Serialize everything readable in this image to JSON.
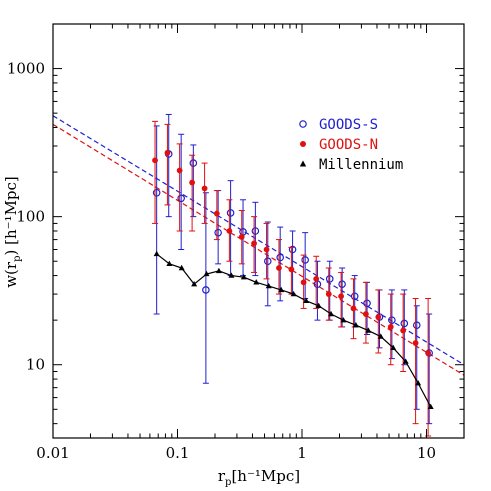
{
  "chart_data": {
    "type": "scatter",
    "x_scale": "log",
    "y_scale": "log",
    "xlim": [
      0.01,
      20
    ],
    "ylim": [
      3.2,
      2000
    ],
    "xlabel_main": "r",
    "xlabel_sub": "p",
    "xlabel_rest": "[h⁻¹Mpc]",
    "ylabel_main": "w(r",
    "ylabel_sub": "p",
    "ylabel_rest": ") [h⁻¹Mpc]",
    "x_ticks": [
      {
        "value": 0.01,
        "label": "0.01"
      },
      {
        "value": 0.1,
        "label": "0.1"
      },
      {
        "value": 1,
        "label": "1"
      },
      {
        "value": 10,
        "label": "10"
      }
    ],
    "y_ticks": [
      {
        "value": 10,
        "label": "10"
      },
      {
        "value": 100,
        "label": "100"
      },
      {
        "value": 1000,
        "label": "1000"
      }
    ],
    "legend": [
      {
        "label": "GOODS-S",
        "marker": "open-circle",
        "color": "#1f1fd0"
      },
      {
        "label": "GOODS-N",
        "marker": "filled-circle",
        "color": "#e01010"
      },
      {
        "label": "Millennium",
        "marker": "filled-triangle",
        "color": "#000000"
      }
    ],
    "series": [
      {
        "name": "GOODS-S",
        "color": "#1f1fd0",
        "marker": "open-circle",
        "points": [
          {
            "x": 0.068,
            "y": 145,
            "lo": 22,
            "hi": 410
          },
          {
            "x": 0.085,
            "y": 265,
            "lo": 100,
            "hi": 490
          },
          {
            "x": 0.107,
            "y": 133,
            "lo": 60,
            "hi": 360
          },
          {
            "x": 0.134,
            "y": 230,
            "lo": 100,
            "hi": 305
          },
          {
            "x": 0.169,
            "y": 32,
            "lo": 7.5,
            "hi": 145
          },
          {
            "x": 0.212,
            "y": 78,
            "lo": 48,
            "hi": 150
          },
          {
            "x": 0.267,
            "y": 106,
            "lo": 40,
            "hi": 175
          },
          {
            "x": 0.336,
            "y": 79,
            "lo": 40,
            "hi": 130
          },
          {
            "x": 0.422,
            "y": 80,
            "lo": 40,
            "hi": 125
          },
          {
            "x": 0.531,
            "y": 50,
            "lo": 25,
            "hi": 92
          },
          {
            "x": 0.668,
            "y": 53,
            "lo": 27,
            "hi": 85
          },
          {
            "x": 0.84,
            "y": 60,
            "lo": 30,
            "hi": 80
          },
          {
            "x": 1.06,
            "y": 51,
            "lo": 28,
            "hi": 78
          },
          {
            "x": 1.33,
            "y": 35,
            "lo": 20,
            "hi": 50
          },
          {
            "x": 1.67,
            "y": 38,
            "lo": 20,
            "hi": 50
          },
          {
            "x": 2.1,
            "y": 35,
            "lo": 18,
            "hi": 45
          },
          {
            "x": 2.65,
            "y": 29,
            "lo": 18,
            "hi": 40
          },
          {
            "x": 3.33,
            "y": 26,
            "lo": 16,
            "hi": 36
          },
          {
            "x": 4.19,
            "y": 21,
            "lo": 13,
            "hi": 32
          },
          {
            "x": 5.27,
            "y": 20,
            "lo": 11,
            "hi": 32
          },
          {
            "x": 6.63,
            "y": 19,
            "lo": 10,
            "hi": 32
          },
          {
            "x": 8.35,
            "y": 18.5,
            "lo": 5,
            "hi": 25
          },
          {
            "x": 10.5,
            "y": 12,
            "lo": 4,
            "hi": 22
          }
        ]
      },
      {
        "name": "GOODS-N",
        "color": "#e01010",
        "marker": "filled-circle",
        "points": [
          {
            "x": 0.066,
            "y": 240,
            "lo": 90,
            "hi": 440
          },
          {
            "x": 0.083,
            "y": 270,
            "lo": 120,
            "hi": 420
          },
          {
            "x": 0.104,
            "y": 205,
            "lo": 80,
            "hi": 310
          },
          {
            "x": 0.131,
            "y": 170,
            "lo": 80,
            "hi": 260
          },
          {
            "x": 0.165,
            "y": 155,
            "lo": 90,
            "hi": 230
          },
          {
            "x": 0.207,
            "y": 105,
            "lo": 70,
            "hi": 150
          },
          {
            "x": 0.261,
            "y": 80,
            "lo": 50,
            "hi": 130
          },
          {
            "x": 0.328,
            "y": 73,
            "lo": 48,
            "hi": 110
          },
          {
            "x": 0.412,
            "y": 66,
            "lo": 42,
            "hi": 100
          },
          {
            "x": 0.519,
            "y": 60,
            "lo": 38,
            "hi": 90
          },
          {
            "x": 0.653,
            "y": 45,
            "lo": 30,
            "hi": 70
          },
          {
            "x": 0.822,
            "y": 44,
            "lo": 30,
            "hi": 62
          },
          {
            "x": 1.03,
            "y": 36,
            "lo": 24,
            "hi": 55
          },
          {
            "x": 1.3,
            "y": 38,
            "lo": 24,
            "hi": 54
          },
          {
            "x": 1.64,
            "y": 30,
            "lo": 20,
            "hi": 45
          },
          {
            "x": 2.06,
            "y": 29,
            "lo": 18,
            "hi": 42
          },
          {
            "x": 2.59,
            "y": 24,
            "lo": 15,
            "hi": 38
          },
          {
            "x": 3.26,
            "y": 22,
            "lo": 14,
            "hi": 36
          },
          {
            "x": 4.1,
            "y": 21,
            "lo": 12,
            "hi": 32
          },
          {
            "x": 5.16,
            "y": 18,
            "lo": 10,
            "hi": 30
          },
          {
            "x": 6.49,
            "y": 17,
            "lo": 9,
            "hi": 30
          },
          {
            "x": 8.17,
            "y": 14,
            "lo": 4,
            "hi": 28
          },
          {
            "x": 10.3,
            "y": 12,
            "lo": 3.3,
            "hi": 28
          }
        ]
      },
      {
        "name": "Millennium",
        "color": "#000000",
        "marker": "filled-triangle",
        "connected": true,
        "points": [
          {
            "x": 0.068,
            "y": 56
          },
          {
            "x": 0.086,
            "y": 48
          },
          {
            "x": 0.108,
            "y": 45
          },
          {
            "x": 0.136,
            "y": 35
          },
          {
            "x": 0.171,
            "y": 41
          },
          {
            "x": 0.215,
            "y": 43
          },
          {
            "x": 0.271,
            "y": 40
          },
          {
            "x": 0.341,
            "y": 39
          },
          {
            "x": 0.429,
            "y": 36
          },
          {
            "x": 0.54,
            "y": 34
          },
          {
            "x": 0.68,
            "y": 32
          },
          {
            "x": 0.856,
            "y": 30
          },
          {
            "x": 1.08,
            "y": 27
          },
          {
            "x": 1.36,
            "y": 25
          },
          {
            "x": 1.71,
            "y": 22
          },
          {
            "x": 2.15,
            "y": 20
          },
          {
            "x": 2.71,
            "y": 18.5
          },
          {
            "x": 3.41,
            "y": 17
          },
          {
            "x": 4.29,
            "y": 15.5
          },
          {
            "x": 5.4,
            "y": 13
          },
          {
            "x": 6.8,
            "y": 10.5
          },
          {
            "x": 8.56,
            "y": 7.5
          },
          {
            "x": 10.8,
            "y": 5.2
          }
        ]
      }
    ],
    "fit_lines": [
      {
        "color": "#1f1fd0",
        "dash": true,
        "from": [
          0.01,
          480
        ],
        "to": [
          20,
          10
        ]
      },
      {
        "color": "#e01010",
        "dash": true,
        "from": [
          0.01,
          420
        ],
        "to": [
          20,
          8.5
        ]
      }
    ]
  }
}
